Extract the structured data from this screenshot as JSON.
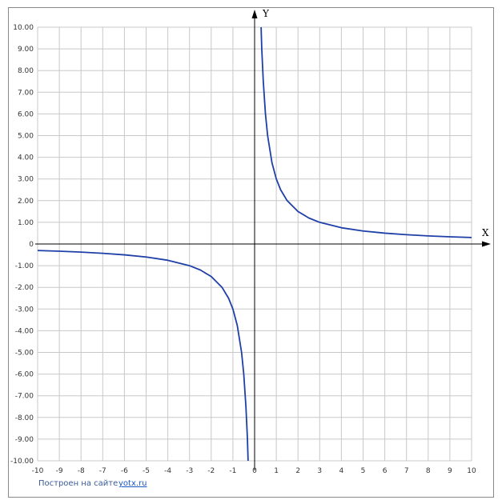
{
  "chart_data": {
    "type": "line",
    "xlabel": "X",
    "ylabel": "Y",
    "xlim": [
      -10,
      10
    ],
    "ylim": [
      -10,
      10
    ],
    "grid": true,
    "x_ticks": [
      "-10",
      "-9",
      "-8",
      "-7",
      "-6",
      "-5",
      "-4",
      "-3",
      "-2",
      "-1",
      "0",
      "1",
      "2",
      "3",
      "4",
      "5",
      "6",
      "7",
      "8",
      "9",
      "10"
    ],
    "y_ticks": [
      "10.00",
      "9.00",
      "8.00",
      "7.00",
      "6.00",
      "5.00",
      "4.00",
      "3.00",
      "2.00",
      "1.00",
      "0",
      "-1.00",
      "-2.00",
      "-3.00",
      "-4.00",
      "-5.00",
      "-6.00",
      "-7.00",
      "-8.00",
      "-9.00",
      "-10.00"
    ],
    "series": [
      {
        "color": "#1f3fa8",
        "points": [
          [
            -10,
            -0.3
          ],
          [
            -9,
            -0.333
          ],
          [
            -8,
            -0.375
          ],
          [
            -7,
            -0.429
          ],
          [
            -6,
            -0.5
          ],
          [
            -5,
            -0.6
          ],
          [
            -4,
            -0.75
          ],
          [
            -3,
            -1.0
          ],
          [
            -2.5,
            -1.2
          ],
          [
            -2,
            -1.5
          ],
          [
            -1.5,
            -2.0
          ],
          [
            -1.2,
            -2.5
          ],
          [
            -1,
            -3.0
          ],
          [
            -0.8,
            -3.75
          ],
          [
            -0.6,
            -5.0
          ],
          [
            -0.5,
            -6.0
          ],
          [
            -0.4,
            -7.5
          ],
          [
            -0.33,
            -9.0
          ],
          [
            -0.3,
            -10.0
          ]
        ]
      },
      {
        "color": "#1f3fa8",
        "points": [
          [
            0.3,
            10.0
          ],
          [
            0.33,
            9.0
          ],
          [
            0.4,
            7.5
          ],
          [
            0.5,
            6.0
          ],
          [
            0.6,
            5.0
          ],
          [
            0.8,
            3.75
          ],
          [
            1,
            3.0
          ],
          [
            1.2,
            2.5
          ],
          [
            1.5,
            2.0
          ],
          [
            2,
            1.5
          ],
          [
            2.5,
            1.2
          ],
          [
            3,
            1.0
          ],
          [
            4,
            0.75
          ],
          [
            5,
            0.6
          ],
          [
            6,
            0.5
          ],
          [
            7,
            0.429
          ],
          [
            8,
            0.375
          ],
          [
            9,
            0.333
          ],
          [
            10,
            0.3
          ]
        ]
      }
    ]
  },
  "footer": {
    "credit": "Построен на сайте",
    "link": "yotx.ru"
  }
}
